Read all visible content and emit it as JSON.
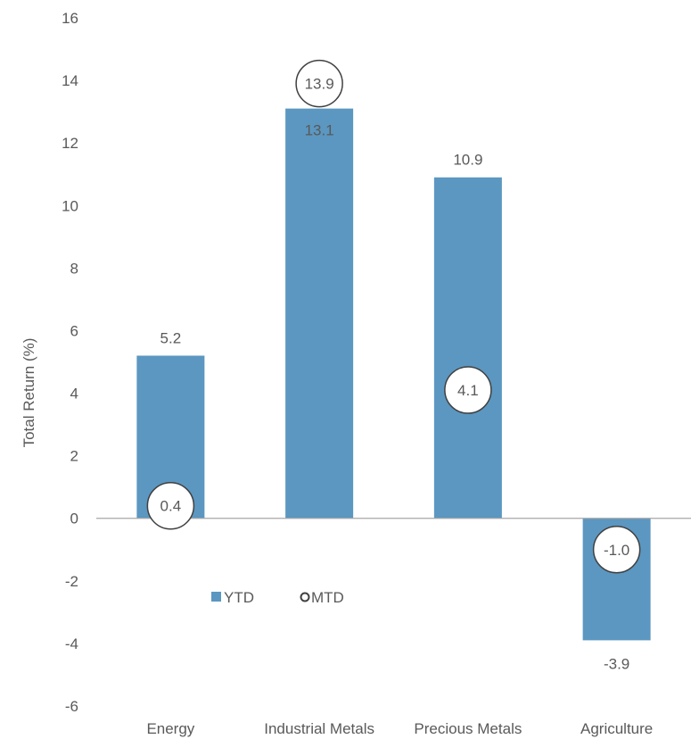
{
  "chart_data": {
    "type": "bar",
    "ylabel": "Total Return (%)",
    "ylim": [
      -6,
      16
    ],
    "yticks": [
      16,
      14,
      12,
      10,
      8,
      6,
      4,
      2,
      0,
      -2,
      -4,
      -6
    ],
    "categories": [
      "Energy",
      "Industrial Metals",
      "Precious Metals",
      "Agriculture"
    ],
    "series": [
      {
        "name": "YTD",
        "kind": "bar",
        "values": [
          5.2,
          13.1,
          10.9,
          -3.9
        ],
        "labels": [
          "5.2",
          "13.1",
          "10.9",
          "-3.9"
        ]
      },
      {
        "name": "MTD",
        "kind": "marker",
        "values": [
          0.4,
          13.9,
          4.1,
          -1.0
        ],
        "labels": [
          "0.4",
          "13.9",
          "4.1",
          "-1.0"
        ]
      }
    ],
    "legend": {
      "placement": "center-inside",
      "items": [
        "YTD",
        "MTD"
      ]
    },
    "grid": false,
    "colors": {
      "bar": "#5b97c1",
      "marker_fill": "#ffffff",
      "marker_stroke": "#404040",
      "text": "#595959",
      "axis": "#a6a6a6"
    }
  }
}
